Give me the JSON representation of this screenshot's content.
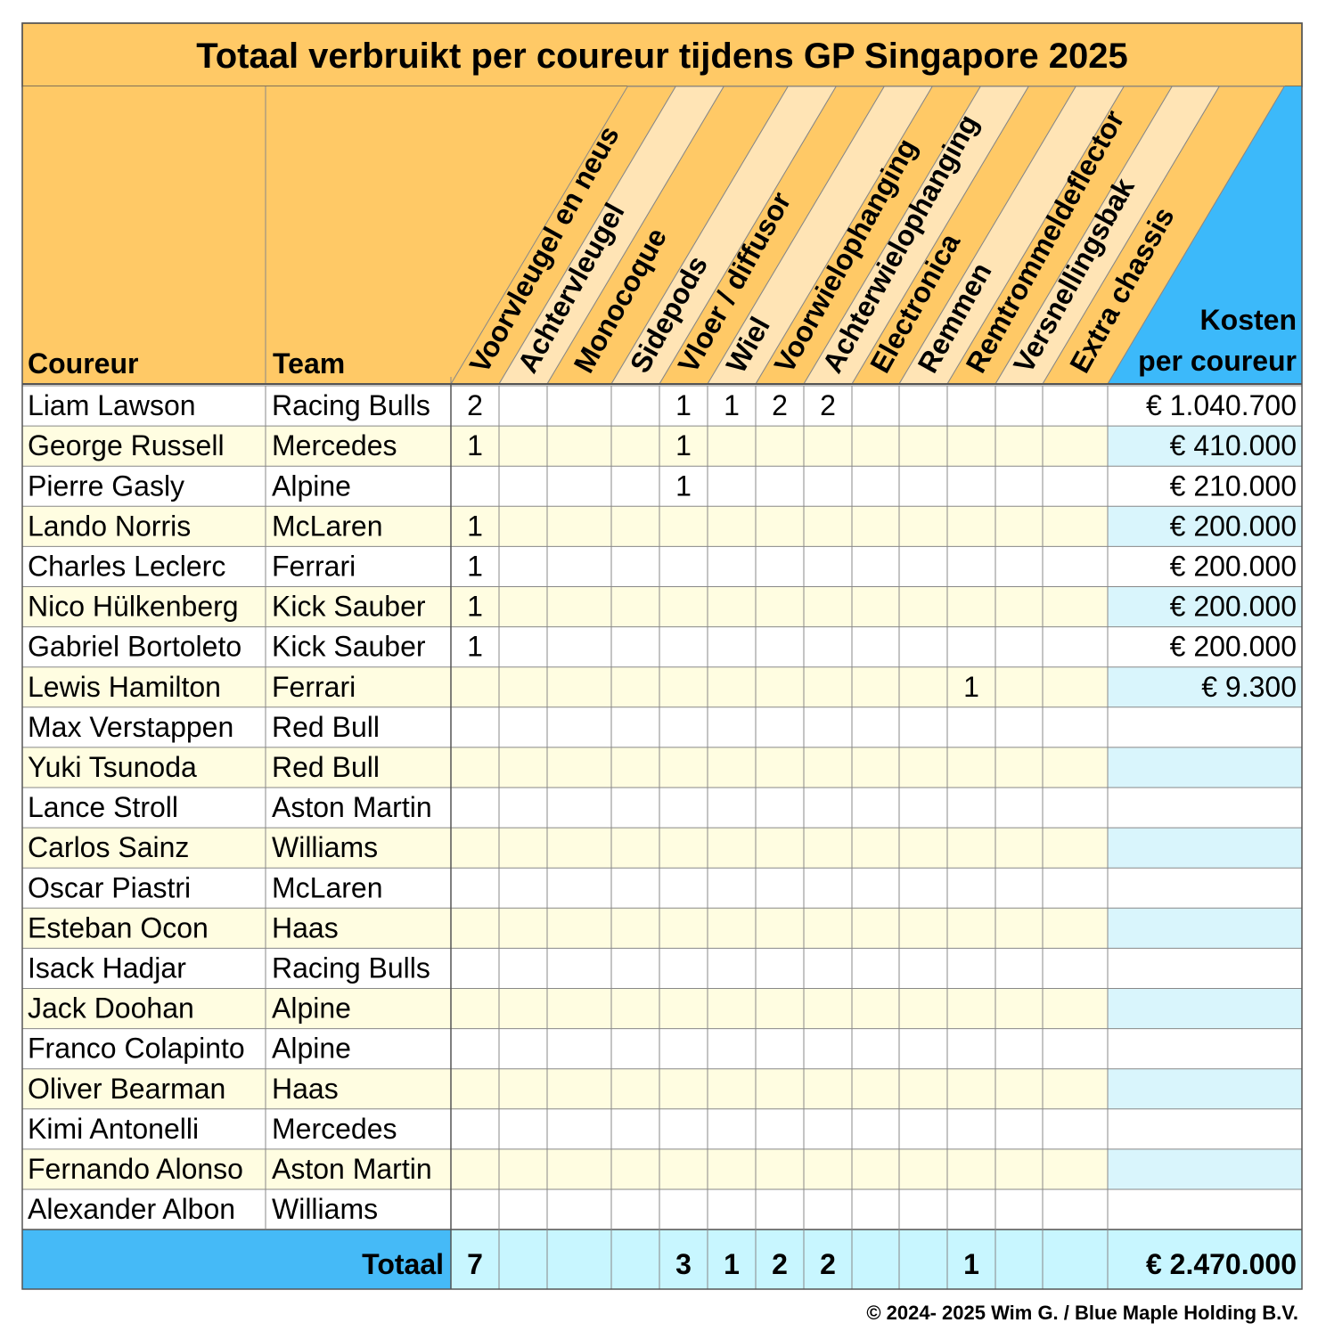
{
  "title": "Totaal verbruikt per coureur tijdens GP Singapore 2025",
  "headers": {
    "driver": "Coureur",
    "team": "Team",
    "cost_line1": "Kosten",
    "cost_line2": "per coureur",
    "parts": [
      "Voorvleugel en neus",
      "Achtervleugel",
      "Monocoque",
      "Sidepods",
      "Vloer / diffusor",
      "Wiel",
      "Voorwielophanging",
      "Achterwielophanging",
      "Electronica",
      "Remmen",
      "Remtrommeldeflector",
      "Versnellingsbak",
      "Extra chassis"
    ]
  },
  "rows": [
    {
      "driver": "Liam Lawson",
      "team": "Racing Bulls",
      "counts": [
        "2",
        "",
        "",
        "",
        "1",
        "1",
        "2",
        "2",
        "",
        "",
        "",
        "",
        ""
      ],
      "cost": "€ 1.040.700"
    },
    {
      "driver": "George Russell",
      "team": "Mercedes",
      "counts": [
        "1",
        "",
        "",
        "",
        "1",
        "",
        "",
        "",
        "",
        "",
        "",
        "",
        ""
      ],
      "cost": "€ 410.000"
    },
    {
      "driver": "Pierre Gasly",
      "team": "Alpine",
      "counts": [
        "",
        "",
        "",
        "",
        "1",
        "",
        "",
        "",
        "",
        "",
        "",
        "",
        ""
      ],
      "cost": "€ 210.000"
    },
    {
      "driver": "Lando Norris",
      "team": "McLaren",
      "counts": [
        "1",
        "",
        "",
        "",
        "",
        "",
        "",
        "",
        "",
        "",
        "",
        "",
        ""
      ],
      "cost": "€ 200.000"
    },
    {
      "driver": "Charles Leclerc",
      "team": "Ferrari",
      "counts": [
        "1",
        "",
        "",
        "",
        "",
        "",
        "",
        "",
        "",
        "",
        "",
        "",
        ""
      ],
      "cost": "€ 200.000"
    },
    {
      "driver": "Nico Hülkenberg",
      "team": "Kick Sauber",
      "counts": [
        "1",
        "",
        "",
        "",
        "",
        "",
        "",
        "",
        "",
        "",
        "",
        "",
        ""
      ],
      "cost": "€ 200.000"
    },
    {
      "driver": "Gabriel Bortoleto",
      "team": "Kick Sauber",
      "counts": [
        "1",
        "",
        "",
        "",
        "",
        "",
        "",
        "",
        "",
        "",
        "",
        "",
        ""
      ],
      "cost": "€ 200.000"
    },
    {
      "driver": "Lewis Hamilton",
      "team": "Ferrari",
      "counts": [
        "",
        "",
        "",
        "",
        "",
        "",
        "",
        "",
        "",
        "",
        "1",
        "",
        ""
      ],
      "cost": "€ 9.300"
    },
    {
      "driver": "Max Verstappen",
      "team": "Red Bull",
      "counts": [
        "",
        "",
        "",
        "",
        "",
        "",
        "",
        "",
        "",
        "",
        "",
        "",
        ""
      ],
      "cost": ""
    },
    {
      "driver": "Yuki Tsunoda",
      "team": "Red Bull",
      "counts": [
        "",
        "",
        "",
        "",
        "",
        "",
        "",
        "",
        "",
        "",
        "",
        "",
        ""
      ],
      "cost": ""
    },
    {
      "driver": "Lance Stroll",
      "team": "Aston Martin",
      "counts": [
        "",
        "",
        "",
        "",
        "",
        "",
        "",
        "",
        "",
        "",
        "",
        "",
        ""
      ],
      "cost": ""
    },
    {
      "driver": "Carlos Sainz",
      "team": "Williams",
      "counts": [
        "",
        "",
        "",
        "",
        "",
        "",
        "",
        "",
        "",
        "",
        "",
        "",
        ""
      ],
      "cost": ""
    },
    {
      "driver": "Oscar Piastri",
      "team": "McLaren",
      "counts": [
        "",
        "",
        "",
        "",
        "",
        "",
        "",
        "",
        "",
        "",
        "",
        "",
        ""
      ],
      "cost": ""
    },
    {
      "driver": "Esteban Ocon",
      "team": "Haas",
      "counts": [
        "",
        "",
        "",
        "",
        "",
        "",
        "",
        "",
        "",
        "",
        "",
        "",
        ""
      ],
      "cost": ""
    },
    {
      "driver": "Isack Hadjar",
      "team": "Racing Bulls",
      "counts": [
        "",
        "",
        "",
        "",
        "",
        "",
        "",
        "",
        "",
        "",
        "",
        "",
        ""
      ],
      "cost": ""
    },
    {
      "driver": "Jack Doohan",
      "team": "Alpine",
      "counts": [
        "",
        "",
        "",
        "",
        "",
        "",
        "",
        "",
        "",
        "",
        "",
        "",
        ""
      ],
      "cost": ""
    },
    {
      "driver": "Franco Colapinto",
      "team": "Alpine",
      "counts": [
        "",
        "",
        "",
        "",
        "",
        "",
        "",
        "",
        "",
        "",
        "",
        "",
        ""
      ],
      "cost": ""
    },
    {
      "driver": "Oliver Bearman",
      "team": "Haas",
      "counts": [
        "",
        "",
        "",
        "",
        "",
        "",
        "",
        "",
        "",
        "",
        "",
        "",
        ""
      ],
      "cost": ""
    },
    {
      "driver": "Kimi Antonelli",
      "team": "Mercedes",
      "counts": [
        "",
        "",
        "",
        "",
        "",
        "",
        "",
        "",
        "",
        "",
        "",
        "",
        ""
      ],
      "cost": ""
    },
    {
      "driver": "Fernando Alonso",
      "team": "Aston Martin",
      "counts": [
        "",
        "",
        "",
        "",
        "",
        "",
        "",
        "",
        "",
        "",
        "",
        "",
        ""
      ],
      "cost": ""
    },
    {
      "driver": "Alexander Albon",
      "team": "Williams",
      "counts": [
        "",
        "",
        "",
        "",
        "",
        "",
        "",
        "",
        "",
        "",
        "",
        "",
        ""
      ],
      "cost": ""
    }
  ],
  "totals": {
    "label": "Totaal",
    "counts": [
      "7",
      "",
      "",
      "",
      "3",
      "1",
      "2",
      "2",
      "",
      "",
      "1",
      "",
      ""
    ],
    "cost": "€ 2.470.000"
  },
  "copyright": "© 2024- 2025 Wim G. / Blue Maple Holding B.V.",
  "colors": {
    "header_orange": "#FFC966",
    "header_stripe_light": "#FFE4B5",
    "row_alt_yellow": "#FFFDE1",
    "cost_blue_header": "#3CB9FA",
    "cost_light_blue": "#D9F5FC",
    "total_blue": "#45BAF7",
    "total_cell_light": "#C8F6FF",
    "grid_line": "#888888",
    "frame_line": "#555555"
  },
  "icons": []
}
